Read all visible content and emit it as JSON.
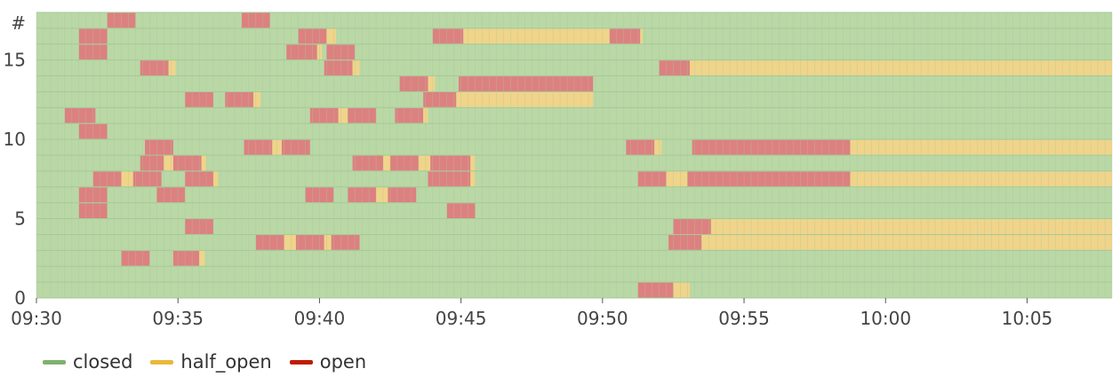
{
  "chart_data": {
    "type": "heatmap",
    "title": "",
    "xlabel": "",
    "ylabel": "#",
    "x_ticks": [
      "09:30",
      "09:35",
      "09:40",
      "09:45",
      "09:50",
      "09:55",
      "10:00",
      "10:05"
    ],
    "y_ticks": [
      "0",
      "5",
      "10",
      "15",
      "#"
    ],
    "xlim": [
      "09:30",
      "10:08"
    ],
    "ylim": [
      0,
      17
    ],
    "grid": true,
    "legend_position": "bottom-left",
    "background_state": "closed",
    "colors": {
      "closed": "#b9d8a6",
      "half_open": "#f0d48a",
      "open": "#dd8080",
      "grid": "#a7c898"
    },
    "legend": [
      {
        "name": "closed",
        "color": "#7eb26d"
      },
      {
        "name": "half_open",
        "color": "#eab839"
      },
      {
        "name": "open",
        "color": "#bf1b00"
      }
    ],
    "rows": [
      {
        "id": 0,
        "segments": [
          [
            "open",
            "09:51:15",
            "09:52:30"
          ],
          [
            "half_open",
            "09:52:30",
            "09:53:05"
          ]
        ]
      },
      {
        "id": 1,
        "segments": []
      },
      {
        "id": 2,
        "segments": [
          [
            "open",
            "09:33:00",
            "09:34:00"
          ],
          [
            "open",
            "09:34:50",
            "09:35:45"
          ],
          [
            "half_open",
            "09:35:45",
            "09:35:57"
          ]
        ]
      },
      {
        "id": 3,
        "segments": [
          [
            "open",
            "09:37:45",
            "09:38:45"
          ],
          [
            "half_open",
            "09:38:45",
            "09:39:10"
          ],
          [
            "open",
            "09:39:10",
            "09:40:10"
          ],
          [
            "half_open",
            "09:40:10",
            "09:40:25"
          ],
          [
            "open",
            "09:40:25",
            "09:41:25"
          ],
          [
            "open",
            "09:52:20",
            "09:53:30"
          ],
          [
            "half_open",
            "09:53:30",
            "10:08:00"
          ]
        ]
      },
      {
        "id": 4,
        "segments": [
          [
            "open",
            "09:35:15",
            "09:36:15"
          ],
          [
            "open",
            "09:52:30",
            "09:53:50"
          ],
          [
            "half_open",
            "09:53:50",
            "10:08:00"
          ]
        ]
      },
      {
        "id": 5,
        "segments": [
          [
            "open",
            "09:31:30",
            "09:32:30"
          ],
          [
            "open",
            "09:44:30",
            "09:45:30"
          ]
        ]
      },
      {
        "id": 6,
        "segments": [
          [
            "open",
            "09:31:30",
            "09:32:30"
          ],
          [
            "open",
            "09:34:15",
            "09:35:15"
          ],
          [
            "open",
            "09:39:30",
            "09:40:30"
          ],
          [
            "open",
            "09:41:00",
            "09:42:00"
          ],
          [
            "half_open",
            "09:42:00",
            "09:42:25"
          ],
          [
            "open",
            "09:42:25",
            "09:43:25"
          ]
        ]
      },
      {
        "id": 7,
        "segments": [
          [
            "open",
            "09:32:00",
            "09:33:00"
          ],
          [
            "half_open",
            "09:33:00",
            "09:33:25"
          ],
          [
            "open",
            "09:33:25",
            "09:34:25"
          ],
          [
            "open",
            "09:35:15",
            "09:36:15"
          ],
          [
            "half_open",
            "09:36:15",
            "09:36:25"
          ],
          [
            "open",
            "09:43:50",
            "09:45:20"
          ],
          [
            "half_open",
            "09:45:20",
            "09:45:30"
          ],
          [
            "open",
            "09:51:15",
            "09:52:15"
          ],
          [
            "half_open",
            "09:52:15",
            "09:53:00"
          ],
          [
            "open",
            "09:53:00",
            "09:58:45"
          ],
          [
            "half_open",
            "09:58:45",
            "10:08:00"
          ]
        ]
      },
      {
        "id": 8,
        "segments": [
          [
            "open",
            "09:33:40",
            "09:34:30"
          ],
          [
            "half_open",
            "09:34:30",
            "09:34:50"
          ],
          [
            "open",
            "09:34:50",
            "09:35:50"
          ],
          [
            "half_open",
            "09:35:50",
            "09:36:00"
          ],
          [
            "open",
            "09:41:10",
            "09:42:15"
          ],
          [
            "half_open",
            "09:42:15",
            "09:42:30"
          ],
          [
            "open",
            "09:42:30",
            "09:43:30"
          ],
          [
            "half_open",
            "09:43:30",
            "09:43:55"
          ],
          [
            "open",
            "09:43:55",
            "09:45:20"
          ],
          [
            "half_open",
            "09:45:20",
            "09:45:30"
          ]
        ]
      },
      {
        "id": 9,
        "segments": [
          [
            "open",
            "09:33:50",
            "09:34:50"
          ],
          [
            "open",
            "09:37:20",
            "09:38:20"
          ],
          [
            "half_open",
            "09:38:20",
            "09:38:40"
          ],
          [
            "open",
            "09:38:40",
            "09:39:40"
          ],
          [
            "open",
            "09:50:50",
            "09:51:50"
          ],
          [
            "half_open",
            "09:51:50",
            "09:52:05"
          ],
          [
            "open",
            "09:53:10",
            "09:58:45"
          ],
          [
            "half_open",
            "09:58:45",
            "10:08:00"
          ]
        ]
      },
      {
        "id": 10,
        "segments": [
          [
            "open",
            "09:31:30",
            "09:32:30"
          ]
        ]
      },
      {
        "id": 11,
        "segments": [
          [
            "open",
            "09:31:00",
            "09:32:05"
          ],
          [
            "open",
            "09:39:40",
            "09:40:40"
          ],
          [
            "half_open",
            "09:40:40",
            "09:41:00"
          ],
          [
            "open",
            "09:41:00",
            "09:42:00"
          ],
          [
            "open",
            "09:42:40",
            "09:43:40"
          ],
          [
            "half_open",
            "09:43:40",
            "09:43:50"
          ]
        ]
      },
      {
        "id": 12,
        "segments": [
          [
            "open",
            "09:35:15",
            "09:36:15"
          ],
          [
            "open",
            "09:36:40",
            "09:37:40"
          ],
          [
            "half_open",
            "09:37:40",
            "09:37:55"
          ],
          [
            "open",
            "09:43:40",
            "09:44:50"
          ],
          [
            "half_open",
            "09:44:50",
            "09:49:40"
          ]
        ]
      },
      {
        "id": 13,
        "segments": [
          [
            "open",
            "09:42:50",
            "09:43:50"
          ],
          [
            "half_open",
            "09:43:50",
            "09:44:05"
          ],
          [
            "open",
            "09:44:55",
            "09:49:40"
          ]
        ]
      },
      {
        "id": 14,
        "segments": [
          [
            "open",
            "09:33:40",
            "09:34:40"
          ],
          [
            "half_open",
            "09:34:40",
            "09:34:55"
          ],
          [
            "open",
            "09:40:10",
            "09:41:10"
          ],
          [
            "half_open",
            "09:41:10",
            "09:41:25"
          ],
          [
            "open",
            "09:52:00",
            "09:53:05"
          ],
          [
            "half_open",
            "09:53:05",
            "10:08:00"
          ]
        ]
      },
      {
        "id": 15,
        "segments": [
          [
            "open",
            "09:31:30",
            "09:32:30"
          ],
          [
            "open",
            "09:38:50",
            "09:39:55"
          ],
          [
            "half_open",
            "09:39:55",
            "09:40:05"
          ],
          [
            "open",
            "09:40:15",
            "09:41:15"
          ]
        ]
      },
      {
        "id": 16,
        "segments": [
          [
            "open",
            "09:31:30",
            "09:32:30"
          ],
          [
            "open",
            "09:39:15",
            "09:40:15"
          ],
          [
            "half_open",
            "09:40:15",
            "09:40:35"
          ],
          [
            "open",
            "09:44:00",
            "09:45:05"
          ],
          [
            "half_open",
            "09:45:05",
            "09:50:15"
          ],
          [
            "open",
            "09:50:15",
            "09:51:20"
          ],
          [
            "half_open",
            "09:51:20",
            "09:51:25"
          ]
        ]
      },
      {
        "id": 17,
        "segments": [
          [
            "open",
            "09:32:30",
            "09:33:30"
          ],
          [
            "open",
            "09:37:15",
            "09:38:15"
          ]
        ]
      }
    ]
  }
}
